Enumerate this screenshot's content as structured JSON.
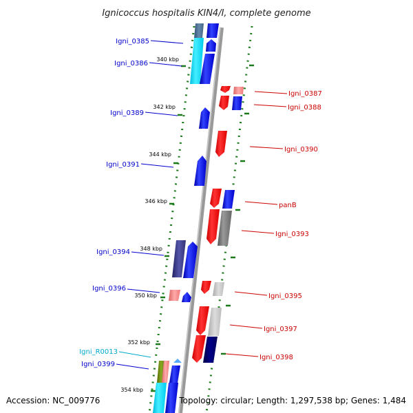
{
  "title": "Ignicoccus hospitalis KIN4/I, complete genome",
  "footer": {
    "accession": "Accession: NC_009776",
    "summary": "Topology: circular; Length: 1,297,538 bp; Genes: 1,484"
  },
  "colors": {
    "plus_strand_label": "#0000cc",
    "minus_strand_label": "#cc0000",
    "rna_label": "#00aacc",
    "tick_dot": "#1a7a1a",
    "backbone": "#999999"
  },
  "ticks": [
    "340 kbp",
    "342 kbp",
    "344 kbp",
    "346 kbp",
    "348 kbp",
    "350 kbp",
    "352 kbp",
    "354 kbp"
  ],
  "genes_left": [
    {
      "name": "Igni_0385",
      "kind": "cds"
    },
    {
      "name": "Igni_0386",
      "kind": "cds"
    },
    {
      "name": "Igni_0389",
      "kind": "cds"
    },
    {
      "name": "Igni_0391",
      "kind": "cds"
    },
    {
      "name": "Igni_0394",
      "kind": "cds"
    },
    {
      "name": "Igni_0396",
      "kind": "cds"
    },
    {
      "name": "Igni_R0013",
      "kind": "rna"
    },
    {
      "name": "Igni_0399",
      "kind": "cds"
    }
  ],
  "genes_right": [
    {
      "name": "Igni_0387",
      "kind": "cds"
    },
    {
      "name": "Igni_0388",
      "kind": "cds"
    },
    {
      "name": "Igni_0390",
      "kind": "cds"
    },
    {
      "name": "panB",
      "kind": "cds"
    },
    {
      "name": "Igni_0393",
      "kind": "cds"
    },
    {
      "name": "Igni_0395",
      "kind": "cds"
    },
    {
      "name": "Igni_0397",
      "kind": "cds"
    },
    {
      "name": "Igni_0398",
      "kind": "cds"
    }
  ]
}
